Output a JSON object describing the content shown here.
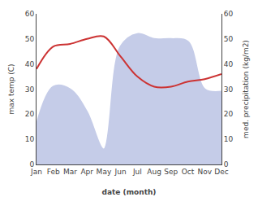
{
  "chart_data": {
    "type": "line",
    "xlabel": "date (month)",
    "ylabel": "max temp (C)",
    "y2label": "med. precipitation (kg/m2)",
    "categories": [
      "Jan",
      "Feb",
      "Mar",
      "Apr",
      "May",
      "Jun",
      "Jul",
      "Aug",
      "Sep",
      "Oct",
      "Nov",
      "Dec"
    ],
    "series": [
      {
        "type": "area",
        "axis": "y2",
        "color": "#c5cce8",
        "values": [
          16,
          31,
          30,
          21,
          6,
          47,
          52,
          50,
          50,
          49,
          30,
          29
        ]
      },
      {
        "type": "line",
        "axis": "y",
        "color": "#cc3333",
        "values": [
          38,
          47,
          48,
          50,
          51,
          43,
          35,
          31,
          31,
          33,
          34,
          36
        ]
      }
    ],
    "ylim": [
      0,
      60
    ],
    "yticks": [
      0,
      10,
      20,
      30,
      40,
      50,
      60
    ],
    "y2lim": [
      0,
      60
    ],
    "y2ticks": [
      0,
      10,
      20,
      30,
      40,
      50,
      60
    ],
    "grid": false
  }
}
